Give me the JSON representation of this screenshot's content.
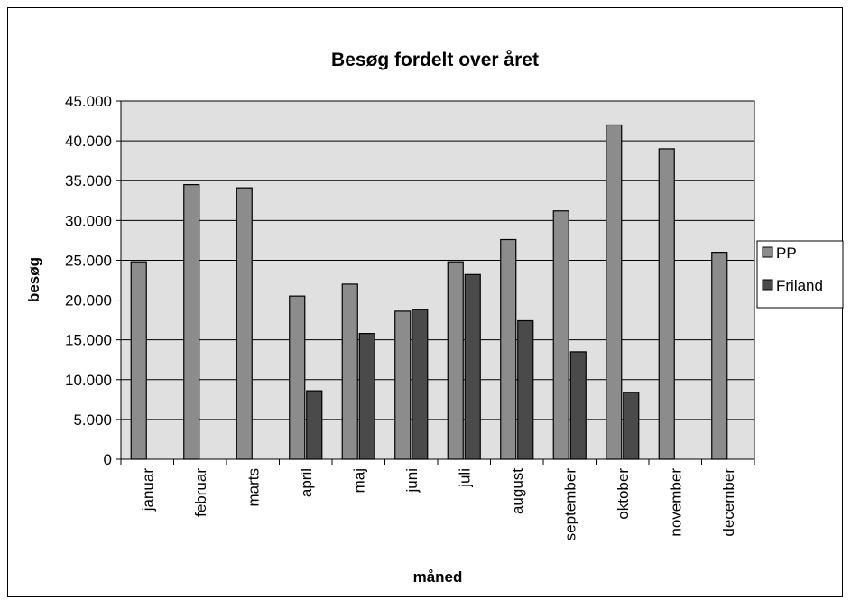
{
  "chart_data": {
    "type": "bar",
    "title": "Besøg fordelt over året",
    "xlabel": "måned",
    "ylabel": "besøg",
    "categories": [
      "januar",
      "februar",
      "marts",
      "april",
      "maj",
      "juni",
      "juli",
      "august",
      "september",
      "oktober",
      "november",
      "december"
    ],
    "series": [
      {
        "name": "PP",
        "color": "#8c8c8c",
        "values": [
          24800,
          34500,
          34100,
          20500,
          22000,
          18600,
          24800,
          27600,
          31200,
          42000,
          39000,
          26000
        ]
      },
      {
        "name": "Friland",
        "color": "#4a4a4a",
        "values": [
          null,
          null,
          null,
          8600,
          15800,
          18800,
          23200,
          17400,
          13500,
          8400,
          null,
          null
        ]
      }
    ],
    "ylim": [
      0,
      45000
    ],
    "ytick_step": 5000,
    "ytick_labels": [
      "0",
      "5.000",
      "10.000",
      "15.000",
      "20.000",
      "25.000",
      "30.000",
      "35.000",
      "40.000",
      "45.000"
    ],
    "grid": true,
    "plot_background": "#e0e0e0",
    "legend_position": "right"
  }
}
